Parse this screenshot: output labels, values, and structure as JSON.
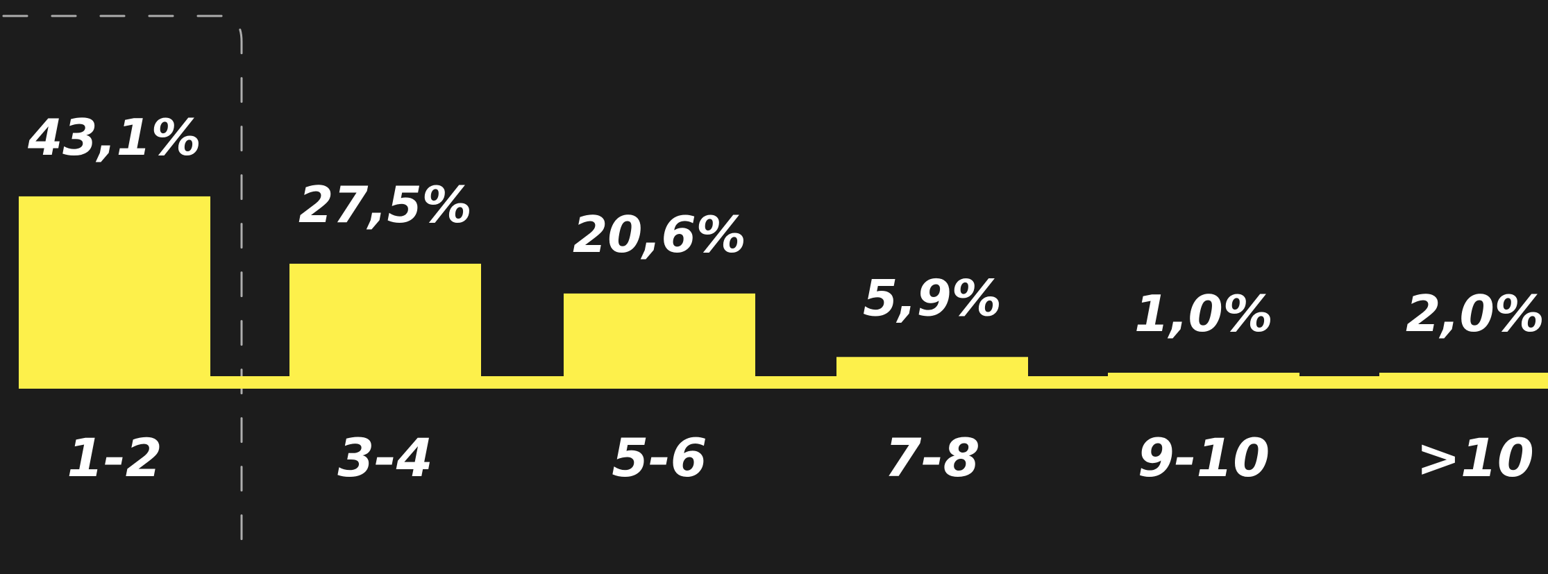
{
  "chart_data": {
    "type": "bar",
    "categories": [
      "1-2",
      "3-4",
      "5-6",
      "7-8",
      "9-10",
      ">10"
    ],
    "values": [
      43.1,
      27.5,
      20.6,
      5.9,
      1.0,
      2.0
    ],
    "value_labels": [
      "43,1%",
      "27,5%",
      "20,6%",
      "5,9%",
      "1,0%",
      "2,0%"
    ],
    "unit": "%",
    "title": "",
    "xlabel": "",
    "ylabel": "",
    "ylim": [
      0,
      45
    ],
    "grid": false,
    "highlighted_category": "1-2",
    "colors": {
      "background": "#1c1c1c",
      "bar": "#fdf04b",
      "text": "#ffffff",
      "highlight_frame": "#c8c8c8"
    }
  }
}
